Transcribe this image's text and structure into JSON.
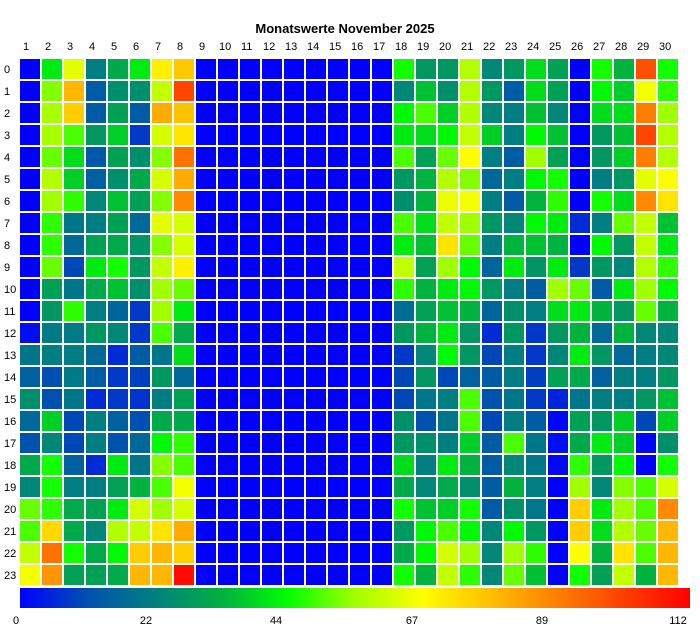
{
  "chart_data": {
    "type": "heatmap",
    "title": "Monatswerte November 2025",
    "xlabel": "",
    "ylabel": "",
    "x_labels": [
      "1",
      "2",
      "3",
      "4",
      "5",
      "6",
      "7",
      "8",
      "9",
      "10",
      "11",
      "12",
      "13",
      "14",
      "15",
      "16",
      "17",
      "18",
      "19",
      "20",
      "21",
      "22",
      "23",
      "24",
      "25",
      "26",
      "27",
      "28",
      "29",
      "30"
    ],
    "y_labels": [
      "0",
      "1",
      "2",
      "3",
      "4",
      "5",
      "6",
      "7",
      "8",
      "9",
      "10",
      "11",
      "12",
      "13",
      "14",
      "15",
      "16",
      "17",
      "18",
      "19",
      "20",
      "21",
      "22",
      "23"
    ],
    "colorbar_ticks": [
      "0",
      "22",
      "44",
      "67",
      "89",
      "112"
    ],
    "value_range": [
      0,
      112
    ],
    "colorscale": [
      "#0000ff",
      "#0050b0",
      "#008080",
      "#00b040",
      "#00ff00",
      "#a0ff00",
      "#ffff00",
      "#ffc000",
      "#ff8000",
      "#ff4000",
      "#ff0000"
    ],
    "values": [
      [
        0,
        42,
        64,
        22,
        32,
        42,
        70,
        77,
        0,
        0,
        0,
        0,
        0,
        0,
        0,
        0,
        0,
        46,
        28,
        28,
        58,
        24,
        28,
        40,
        30,
        0,
        46,
        34,
        98,
        46
      ],
      [
        0,
        54,
        80,
        14,
        26,
        26,
        60,
        100,
        0,
        0,
        0,
        0,
        0,
        0,
        0,
        0,
        0,
        24,
        36,
        26,
        58,
        28,
        14,
        40,
        30,
        0,
        44,
        38,
        66,
        48
      ],
      [
        0,
        57,
        76,
        14,
        30,
        14,
        82,
        78,
        0,
        0,
        0,
        0,
        0,
        0,
        0,
        0,
        0,
        44,
        50,
        38,
        58,
        24,
        22,
        36,
        24,
        0,
        40,
        40,
        90,
        56
      ],
      [
        0,
        57,
        50,
        28,
        38,
        8,
        62,
        72,
        0,
        0,
        0,
        0,
        0,
        0,
        0,
        0,
        0,
        42,
        40,
        44,
        60,
        38,
        22,
        44,
        36,
        0,
        28,
        36,
        100,
        58
      ],
      [
        0,
        52,
        40,
        13,
        30,
        26,
        54,
        92,
        0,
        0,
        0,
        0,
        0,
        0,
        0,
        0,
        0,
        50,
        30,
        52,
        67,
        22,
        14,
        56,
        30,
        0,
        28,
        38,
        90,
        58
      ],
      [
        0,
        58,
        38,
        15,
        26,
        32,
        62,
        82,
        0,
        0,
        0,
        0,
        0,
        0,
        0,
        0,
        0,
        28,
        34,
        58,
        54,
        17,
        22,
        44,
        46,
        0,
        22,
        28,
        64,
        67
      ],
      [
        0,
        56,
        48,
        24,
        36,
        30,
        54,
        88,
        0,
        0,
        0,
        0,
        0,
        0,
        0,
        0,
        0,
        26,
        34,
        65,
        66,
        22,
        14,
        34,
        48,
        0,
        46,
        40,
        88,
        72
      ],
      [
        0,
        48,
        20,
        22,
        30,
        17,
        64,
        62,
        0,
        0,
        0,
        0,
        0,
        0,
        0,
        0,
        0,
        50,
        40,
        60,
        56,
        28,
        24,
        44,
        42,
        6,
        22,
        52,
        60,
        36
      ],
      [
        0,
        48,
        17,
        30,
        32,
        27,
        54,
        62,
        0,
        0,
        0,
        0,
        0,
        0,
        0,
        0,
        0,
        42,
        36,
        72,
        52,
        22,
        34,
        36,
        34,
        0,
        44,
        28,
        60,
        42
      ],
      [
        0,
        52,
        10,
        42,
        46,
        28,
        60,
        70,
        0,
        0,
        0,
        0,
        0,
        0,
        0,
        0,
        0,
        60,
        30,
        56,
        44,
        16,
        42,
        27,
        42,
        8,
        28,
        24,
        58,
        48
      ],
      [
        0,
        30,
        20,
        32,
        36,
        26,
        56,
        52,
        0,
        0,
        0,
        0,
        0,
        0,
        0,
        0,
        0,
        48,
        34,
        42,
        44,
        28,
        22,
        14,
        56,
        52,
        14,
        42,
        56,
        44
      ],
      [
        0,
        28,
        48,
        22,
        16,
        8,
        56,
        42,
        0,
        0,
        0,
        0,
        0,
        0,
        0,
        0,
        0,
        18,
        30,
        36,
        34,
        16,
        26,
        22,
        40,
        42,
        34,
        28,
        52,
        34
      ],
      [
        2,
        21,
        21,
        28,
        24,
        8,
        50,
        32,
        0,
        0,
        0,
        0,
        0,
        0,
        0,
        0,
        0,
        28,
        34,
        42,
        28,
        6,
        28,
        8,
        28,
        34,
        17,
        34,
        24,
        24
      ],
      [
        20,
        22,
        22,
        17,
        6,
        14,
        20,
        40,
        0,
        0,
        0,
        0,
        0,
        0,
        0,
        0,
        0,
        8,
        24,
        44,
        28,
        10,
        22,
        8,
        24,
        42,
        28,
        17,
        22,
        24
      ],
      [
        15,
        11,
        21,
        14,
        8,
        9,
        28,
        17,
        0,
        0,
        0,
        0,
        0,
        0,
        0,
        0,
        0,
        10,
        28,
        10,
        15,
        14,
        22,
        9,
        30,
        32,
        15,
        22,
        22,
        28
      ],
      [
        26,
        11,
        20,
        6,
        8,
        7,
        22,
        30,
        0,
        0,
        0,
        0,
        0,
        0,
        0,
        0,
        0,
        10,
        20,
        22,
        50,
        12,
        20,
        8,
        5,
        20,
        22,
        22,
        28,
        36
      ],
      [
        17,
        38,
        10,
        22,
        15,
        11,
        32,
        32,
        0,
        0,
        0,
        0,
        0,
        0,
        0,
        0,
        0,
        26,
        12,
        20,
        50,
        10,
        22,
        14,
        1,
        30,
        28,
        38,
        10,
        38
      ],
      [
        12,
        24,
        10,
        22,
        12,
        17,
        44,
        48,
        0,
        0,
        0,
        0,
        0,
        0,
        0,
        0,
        0,
        28,
        26,
        22,
        38,
        14,
        50,
        20,
        2,
        32,
        42,
        38,
        1,
        26
      ],
      [
        32,
        46,
        15,
        6,
        42,
        20,
        54,
        50,
        0,
        0,
        0,
        0,
        0,
        0,
        0,
        0,
        0,
        40,
        22,
        42,
        34,
        14,
        24,
        20,
        1,
        48,
        28,
        44,
        0,
        46
      ],
      [
        24,
        46,
        22,
        22,
        30,
        34,
        50,
        66,
        0,
        0,
        0,
        0,
        0,
        0,
        0,
        0,
        0,
        32,
        24,
        32,
        26,
        14,
        34,
        22,
        0,
        56,
        24,
        54,
        50,
        62
      ],
      [
        52,
        48,
        32,
        30,
        42,
        62,
        56,
        62,
        0,
        0,
        0,
        0,
        0,
        0,
        0,
        0,
        0,
        46,
        36,
        38,
        46,
        14,
        26,
        20,
        0,
        76,
        42,
        56,
        50,
        88
      ],
      [
        50,
        74,
        32,
        24,
        58,
        60,
        72,
        82,
        0,
        0,
        0,
        0,
        0,
        0,
        0,
        0,
        0,
        28,
        44,
        50,
        44,
        24,
        44,
        28,
        0,
        76,
        40,
        58,
        52,
        80
      ],
      [
        60,
        92,
        46,
        32,
        44,
        76,
        80,
        76,
        0,
        0,
        0,
        0,
        0,
        0,
        0,
        0,
        0,
        32,
        44,
        62,
        56,
        24,
        56,
        48,
        0,
        67,
        34,
        72,
        50,
        80
      ],
      [
        66,
        86,
        30,
        30,
        32,
        80,
        80,
        110,
        0,
        0,
        0,
        0,
        0,
        0,
        0,
        0,
        0,
        46,
        34,
        60,
        48,
        24,
        52,
        36,
        0,
        46,
        30,
        60,
        34,
        80
      ]
    ]
  }
}
